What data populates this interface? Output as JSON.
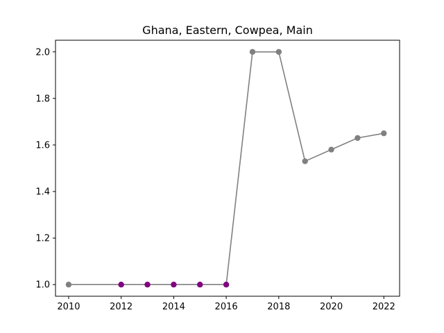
{
  "chart_data": {
    "type": "line",
    "title": "Ghana, Eastern, Cowpea, Main",
    "xlabel": "",
    "ylabel": "",
    "x": [
      2010,
      2012,
      2013,
      2014,
      2015,
      2016,
      2017,
      2018,
      2019,
      2020,
      2021,
      2022
    ],
    "series": [
      {
        "values": [
          1.0,
          1.0,
          1.0,
          1.0,
          1.0,
          1.0,
          2.0,
          2.0,
          1.53,
          1.58,
          1.63,
          1.65
        ],
        "marker_colors": [
          "#808080",
          "#800080",
          "#800080",
          "#800080",
          "#800080",
          "#800080",
          "#808080",
          "#808080",
          "#808080",
          "#808080",
          "#808080",
          "#808080"
        ]
      }
    ],
    "line_color": "#808080",
    "xlim": [
      2009.5,
      2022.6
    ],
    "ylim": [
      0.95,
      2.05
    ],
    "xticks": [
      "2010",
      "2012",
      "2014",
      "2016",
      "2018",
      "2020",
      "2022"
    ],
    "yticks": [
      "1.0",
      "1.2",
      "1.4",
      "1.6",
      "1.8",
      "2.0"
    ],
    "grid": false
  }
}
